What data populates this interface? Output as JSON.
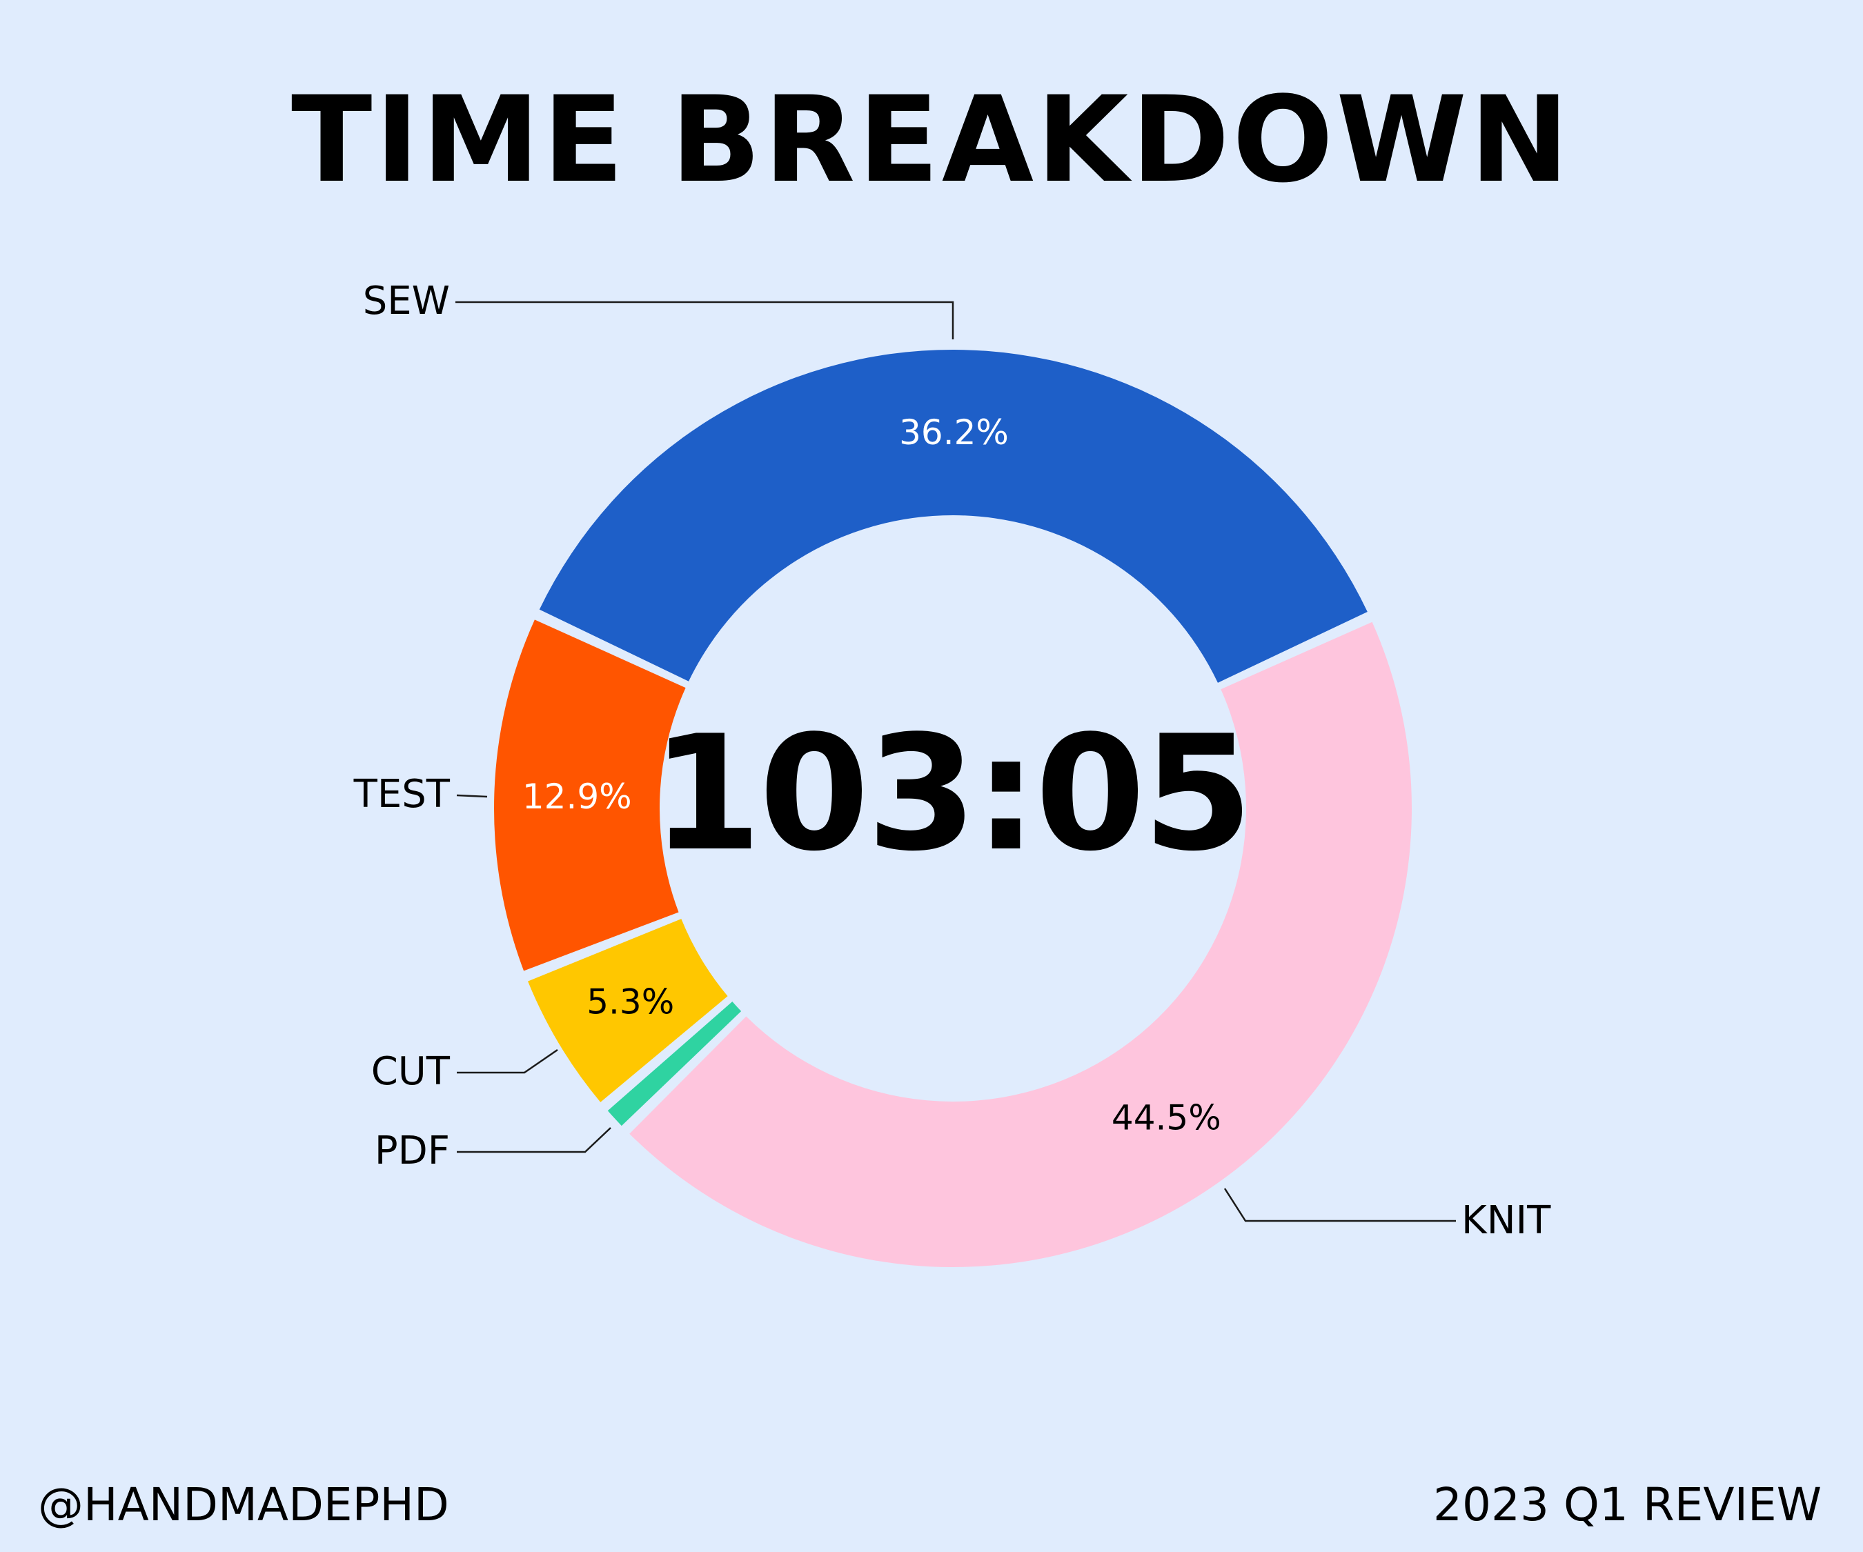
{
  "chart_data": {
    "type": "pie",
    "variant": "donut",
    "title": "TIME BREAKDOWN",
    "center_text": "103:05",
    "categories": [
      "SEW",
      "KNIT",
      "PDF",
      "CUT",
      "TEST"
    ],
    "values": [
      36.2,
      44.5,
      1.1,
      5.3,
      12.9
    ],
    "value_labels": [
      "36.2%",
      "44.5%",
      "",
      "5.3%",
      "12.9%"
    ],
    "colors": [
      "#1e5fc8",
      "#fec5dd",
      "#2fd3a1",
      "#ffc700",
      "#ff5500"
    ],
    "label_text_colors": [
      "#ffffff",
      "#000000",
      "#000000",
      "#000000",
      "#ffffff"
    ],
    "legend": "none"
  },
  "footer": {
    "handle": "@HANDMADEPHD",
    "period": "2023 Q1 REVIEW"
  }
}
